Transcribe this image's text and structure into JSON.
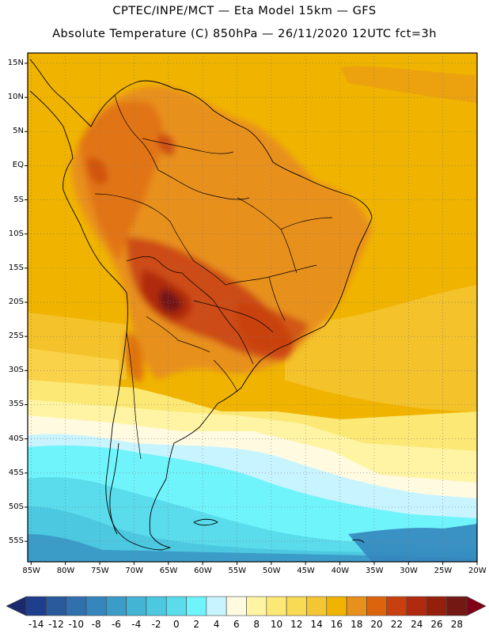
{
  "header": {
    "line1": "CPTEC/INPE/MCT —  Eta Model 15km — GFS",
    "line2": "Absolute Temperature (C) 850hPa — 26/11/2020 12UTC fct=3h"
  },
  "map": {
    "lat_labels": [
      "15N",
      "10N",
      "5N",
      "EQ",
      "5S",
      "10S",
      "15S",
      "20S",
      "25S",
      "30S",
      "35S",
      "40S",
      "45S",
      "50S",
      "55S"
    ],
    "lon_labels": [
      "85W",
      "80W",
      "75W",
      "70W",
      "65W",
      "60W",
      "55W",
      "50W",
      "45W",
      "40W",
      "35W",
      "30W",
      "25W",
      "20W"
    ],
    "lat_values": [
      15,
      10,
      5,
      0,
      -5,
      -10,
      -15,
      -20,
      -25,
      -30,
      -35,
      -40,
      -45,
      -50,
      -55
    ],
    "lon_values": [
      -85,
      -80,
      -75,
      -70,
      -65,
      -60,
      -55,
      -50,
      -45,
      -40,
      -35,
      -30,
      -25,
      -20
    ],
    "extent": {
      "lon_min": -85.5,
      "lon_max": -20,
      "lat_min": -58,
      "lat_max": 16.5
    },
    "field_colors": {
      "tropical_warm": "#f0b400",
      "continent_hot": "#e28a14",
      "hot_core": "#b04010",
      "hottest": "#8a2010",
      "subtropical": "#fad24a",
      "temperate": "#fff0a0",
      "cool": "#c8f4ff",
      "cold_cyan": "#60f0f8",
      "colder": "#3cc8e0",
      "coldest": "#2a88c0"
    }
  },
  "colorbar": {
    "labels": [
      "-14",
      "-12",
      "-10",
      "-8",
      "-6",
      "-4",
      "-2",
      "0",
      "2",
      "4",
      "6",
      "8",
      "10",
      "12",
      "14",
      "16",
      "18",
      "20",
      "22",
      "24",
      "26",
      "28"
    ],
    "colors": [
      "#1f3e8c",
      "#2a5a9c",
      "#3070ac",
      "#3486bc",
      "#3c9cc8",
      "#44b4d4",
      "#4cc8e0",
      "#5adcec",
      "#70f4fc",
      "#c8f4ff",
      "#fffae0",
      "#fff4a4",
      "#fce874",
      "#f9da54",
      "#f5c634",
      "#f0b400",
      "#e8901c",
      "#dc640c",
      "#c84010",
      "#b02a10",
      "#94200c",
      "#741814"
    ],
    "under_color": "#1a2a6c",
    "over_color": "#800018"
  }
}
